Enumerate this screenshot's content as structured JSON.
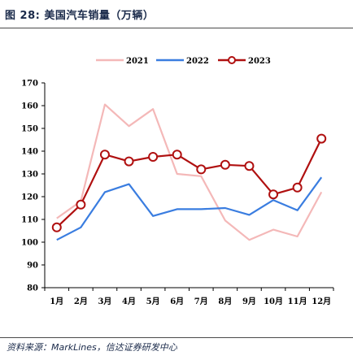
{
  "figure": {
    "title": "图 28: 美国汽车销量（万辆）",
    "source": "资料来源：MarkLines，信达证券研发中心"
  },
  "chart_data": {
    "type": "line",
    "title": "",
    "xlabel": "",
    "ylabel": "",
    "categories": [
      "1月",
      "2月",
      "3月",
      "4月",
      "5月",
      "6月",
      "7月",
      "8月",
      "9月",
      "10月",
      "11月",
      "12月"
    ],
    "ylim": [
      80,
      170
    ],
    "yticks": [
      80,
      90,
      100,
      110,
      120,
      130,
      140,
      150,
      160,
      170
    ],
    "grid": false,
    "legend_position": "top",
    "series": [
      {
        "name": "2021",
        "color": "#f4b8b8",
        "marker": "none",
        "values": [
          110.5,
          118,
          160.5,
          151,
          158.5,
          130,
          129,
          109.5,
          101,
          105.5,
          102.5,
          122
        ]
      },
      {
        "name": "2022",
        "color": "#3a7de0",
        "marker": "none",
        "values": [
          101,
          106.5,
          122,
          125.5,
          111.5,
          114.5,
          114.5,
          115,
          112,
          118.5,
          114,
          128.5
        ]
      },
      {
        "name": "2023",
        "color": "#b01010",
        "marker": "circle",
        "values": [
          106.5,
          116.5,
          138.5,
          135.5,
          137.5,
          138.5,
          132,
          134,
          133.5,
          121,
          124,
          145.5
        ]
      }
    ]
  }
}
